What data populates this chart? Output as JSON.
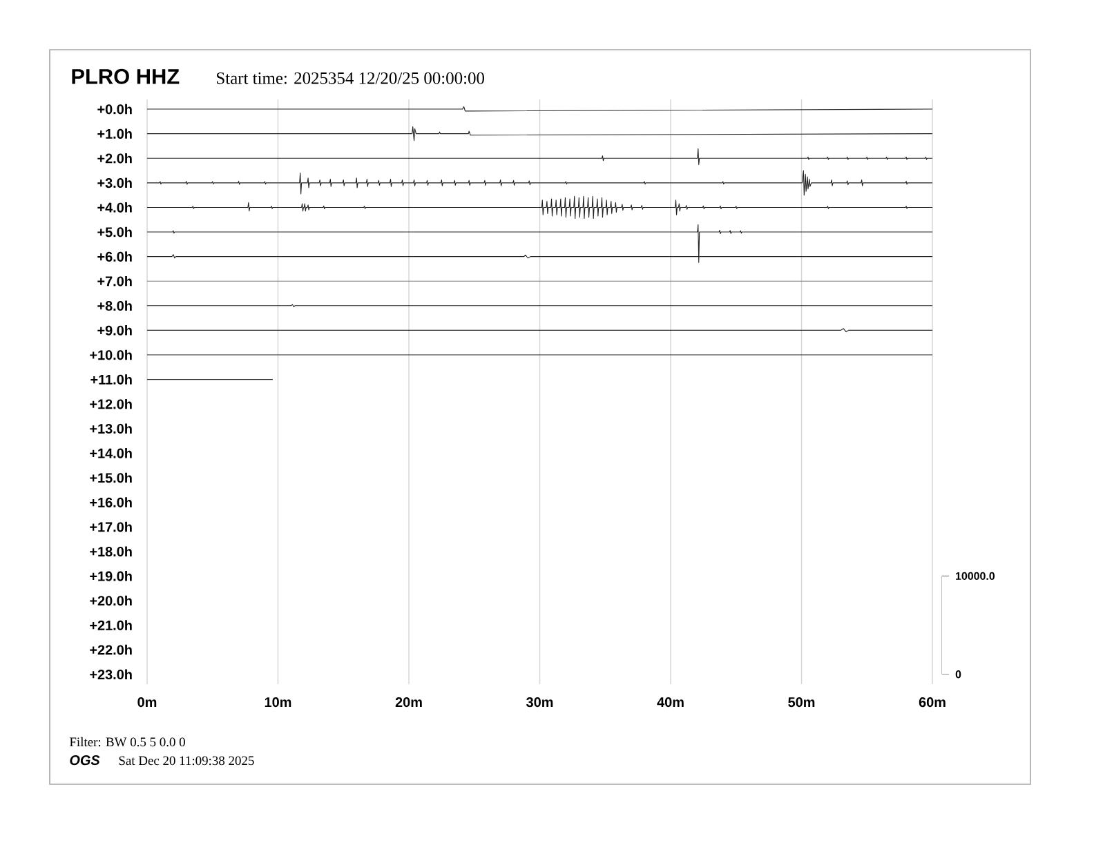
{
  "chart_data": {
    "type": "line",
    "title": "PLRO HHZ",
    "subtitle": "Start time: 2025354 12/20/25 00:00:00",
    "annotations": [
      "Filter: BW 0.5 5 0.0 0",
      "OGS",
      "Sat Dec 20 11:09:38 2025"
    ],
    "xlim": [
      0,
      60
    ],
    "xticks": [
      {
        "value": 0,
        "label": "0m"
      },
      {
        "value": 10,
        "label": "10m"
      },
      {
        "value": 20,
        "label": "20m"
      },
      {
        "value": 30,
        "label": "30m"
      },
      {
        "value": 40,
        "label": "40m"
      },
      {
        "value": 50,
        "label": "50m"
      },
      {
        "value": 60,
        "label": "60m"
      }
    ],
    "ylim": [
      23.4,
      -0.4
    ],
    "yticks": [
      {
        "value": 0,
        "label": "+0.0h"
      },
      {
        "value": 1,
        "label": "+1.0h"
      },
      {
        "value": 2,
        "label": "+2.0h"
      },
      {
        "value": 3,
        "label": "+3.0h"
      },
      {
        "value": 4,
        "label": "+4.0h"
      },
      {
        "value": 5,
        "label": "+5.0h"
      },
      {
        "value": 6,
        "label": "+6.0h"
      },
      {
        "value": 7,
        "label": "+7.0h"
      },
      {
        "value": 8,
        "label": "+8.0h"
      },
      {
        "value": 9,
        "label": "+9.0h"
      },
      {
        "value": 10,
        "label": "+10.0h"
      },
      {
        "value": 11,
        "label": "+11.0h"
      },
      {
        "value": 12,
        "label": "+12.0h"
      },
      {
        "value": 13,
        "label": "+13.0h"
      },
      {
        "value": 14,
        "label": "+14.0h"
      },
      {
        "value": 15,
        "label": "+15.0h"
      },
      {
        "value": 16,
        "label": "+16.0h"
      },
      {
        "value": 17,
        "label": "+17.0h"
      },
      {
        "value": 18,
        "label": "+18.0h"
      },
      {
        "value": 19,
        "label": "+19.0h"
      },
      {
        "value": 20,
        "label": "+20.0h"
      },
      {
        "value": 21,
        "label": "+21.0h"
      },
      {
        "value": 22,
        "label": "+22.0h"
      },
      {
        "value": 23,
        "label": "+23.0h"
      }
    ],
    "y2lim": [
      -1000,
      58500
    ],
    "y2ticks": [
      {
        "value": 0,
        "label": "0"
      },
      {
        "value": 10000,
        "label": "10000.0"
      }
    ],
    "grid": "x",
    "series": [
      {
        "color": "#222222",
        "x": [
          0,
          24.1,
          24.2,
          24.3,
          60
        ],
        "values": [
          0,
          0,
          -0.1,
          0.08,
          0
        ]
      },
      {
        "color": "#222222",
        "x": [
          0,
          20.25,
          20.3,
          20.4,
          20.45,
          20.55,
          22.3,
          22.35,
          22.4,
          24.55,
          24.6,
          24.7,
          60
        ],
        "values": [
          1,
          1,
          0.72,
          1.28,
          0.8,
          1,
          1,
          0.93,
          1,
          1,
          0.9,
          1.06,
          1
        ]
      },
      {
        "color": "#222222",
        "x": [
          0,
          34.75,
          34.8,
          34.85,
          34.9,
          42.05,
          42.1,
          42.15,
          42.2,
          50.45,
          50.5,
          50.55,
          50.6,
          51.95,
          52,
          52.05,
          52.1,
          53.45,
          53.5,
          53.55,
          53.6,
          54.95,
          55,
          55.05,
          55.1,
          56.45,
          56.5,
          56.55,
          56.6,
          57.95,
          58,
          58.05,
          58.1,
          59.45,
          59.5,
          59.55,
          59.6,
          60
        ],
        "values": [
          2,
          2,
          1.9,
          2.1,
          2,
          2,
          1.61,
          2.26,
          2,
          2,
          1.95,
          2.05,
          2,
          2,
          1.95,
          2.05,
          2,
          2,
          1.95,
          2.05,
          2,
          2,
          1.95,
          2.05,
          2,
          2,
          1.95,
          2.05,
          2,
          2,
          1.95,
          2.05,
          2,
          2,
          1.95,
          2.05,
          2,
          2
        ]
      },
      {
        "color": "#222222",
        "x": [
          0,
          0.95,
          1,
          1.05,
          1.1,
          2.95,
          3,
          3.05,
          3.1,
          4.95,
          5,
          5.05,
          5.1,
          6.95,
          7,
          7.05,
          7.1,
          8.95,
          9,
          9.05,
          9.1,
          11.65,
          11.7,
          11.75,
          11.8,
          12.25,
          12.3,
          12.35,
          12.4,
          13.15,
          13.2,
          13.25,
          13.3,
          13.95,
          14,
          14.05,
          14.1,
          14.95,
          15,
          15.05,
          15.1,
          15.95,
          16,
          16.05,
          16.1,
          16.75,
          16.8,
          16.85,
          16.9,
          17.65,
          17.7,
          17.75,
          17.8,
          18.55,
          18.6,
          18.65,
          18.7,
          19.45,
          19.5,
          19.55,
          19.6,
          20.35,
          20.4,
          20.45,
          20.5,
          21.35,
          21.4,
          21.45,
          21.5,
          22.45,
          22.5,
          22.55,
          22.6,
          23.45,
          23.5,
          23.55,
          23.6,
          24.55,
          24.6,
          24.65,
          24.7,
          25.75,
          25.8,
          25.85,
          25.9,
          26.95,
          27,
          27.05,
          27.1,
          27.95,
          28,
          28.05,
          28.1,
          29.15,
          29.2,
          29.25,
          29.3,
          31.95,
          32,
          32.05,
          32.1,
          37.95,
          38,
          38.05,
          38.1,
          43.95,
          44,
          44.05,
          44.1,
          50.05,
          50.15,
          50.2,
          50.3,
          50.35,
          50.45,
          50.5,
          50.6,
          50.65,
          50.75,
          52.25,
          52.3,
          52.35,
          52.4,
          53.45,
          53.5,
          53.55,
          53.6,
          54.55,
          54.6,
          54.65,
          54.7,
          57.95,
          58,
          58.05,
          58.1,
          60
        ],
        "values": [
          3,
          3,
          2.95,
          3.05,
          3,
          3,
          2.94,
          3.06,
          3,
          3,
          2.95,
          3.05,
          3,
          3,
          2.94,
          3.06,
          3,
          3,
          2.95,
          3.05,
          3,
          3,
          2.6,
          3.45,
          3,
          3,
          2.8,
          3.2,
          3,
          3,
          2.88,
          3.12,
          3,
          3,
          2.85,
          3.15,
          3,
          3,
          2.88,
          3.12,
          3,
          3,
          2.8,
          3.2,
          3,
          3,
          2.85,
          3.15,
          3,
          3,
          2.9,
          3.1,
          3,
          3,
          2.85,
          3.15,
          3,
          3,
          2.88,
          3.12,
          3,
          3,
          2.88,
          3.12,
          3,
          3,
          2.9,
          3.1,
          3,
          3,
          2.88,
          3.12,
          3,
          3,
          2.9,
          3.1,
          3,
          3,
          2.9,
          3.1,
          3,
          3,
          2.9,
          3.1,
          3,
          3,
          2.88,
          3.12,
          3,
          3,
          2.9,
          3.1,
          3,
          3,
          2.92,
          3.08,
          3,
          3,
          2.95,
          3.05,
          3,
          3,
          2.95,
          3.05,
          3,
          3,
          2.95,
          3.05,
          3,
          3,
          2.5,
          3.5,
          2.65,
          3.35,
          2.75,
          3.25,
          2.85,
          3.15,
          3,
          3,
          2.88,
          3.12,
          3,
          3,
          2.92,
          3.08,
          3,
          3,
          2.88,
          3.12,
          3,
          3,
          2.94,
          3.06,
          3,
          3
        ]
      },
      {
        "color": "#222222",
        "x": [
          0,
          3.45,
          3.5,
          3.55,
          3.6,
          7.7,
          7.75,
          7.8,
          7.85,
          9.45,
          9.5,
          9.55,
          9.6,
          11.8,
          11.85,
          11.9,
          11.95,
          12,
          12.05,
          12.1,
          12.15,
          12.25,
          12.3,
          12.35,
          12.4,
          13.45,
          13.5,
          13.55,
          13.6,
          16.55,
          16.6,
          16.65,
          16.7,
          30.15,
          30.2,
          30.25,
          30.3,
          30.5,
          30.55,
          30.6,
          30.65,
          30.85,
          30.9,
          30.95,
          31,
          31.2,
          31.25,
          31.3,
          31.35,
          31.55,
          31.6,
          31.65,
          31.7,
          31.9,
          31.95,
          32,
          32.05,
          32.25,
          32.3,
          32.35,
          32.4,
          32.6,
          32.65,
          32.7,
          32.75,
          32.95,
          33,
          33.05,
          33.1,
          33.3,
          33.35,
          33.4,
          33.45,
          33.65,
          33.7,
          33.75,
          33.8,
          34,
          34.05,
          34.1,
          34.15,
          34.35,
          34.4,
          34.45,
          34.5,
          34.7,
          34.75,
          34.8,
          34.85,
          35.05,
          35.1,
          35.15,
          35.2,
          35.4,
          35.45,
          35.5,
          35.55,
          35.75,
          35.8,
          35.85,
          35.9,
          36.25,
          36.3,
          36.35,
          36.4,
          36.95,
          37,
          37.05,
          37.1,
          37.75,
          37.8,
          37.85,
          37.9,
          40.35,
          40.4,
          40.45,
          40.5,
          40.6,
          40.65,
          40.7,
          40.75,
          41.15,
          41.2,
          41.25,
          41.3,
          42.45,
          42.5,
          42.55,
          42.6,
          43.75,
          43.8,
          43.85,
          43.9,
          44.95,
          45,
          45.05,
          45.1,
          51.95,
          52,
          52.05,
          52.1,
          57.95,
          58,
          58.05,
          58.1,
          60
        ],
        "values": [
          4,
          4,
          3.95,
          4.05,
          4,
          4,
          3.8,
          4.15,
          4,
          4,
          3.95,
          4.05,
          4,
          4,
          3.85,
          4.15,
          4,
          4,
          3.85,
          4.15,
          4,
          4,
          3.9,
          4.1,
          4,
          4,
          3.94,
          4.06,
          4,
          4,
          3.95,
          4.05,
          4,
          4,
          3.7,
          4.3,
          4,
          4,
          3.75,
          4.25,
          4,
          4,
          3.65,
          4.35,
          4,
          4,
          3.7,
          4.3,
          4,
          4,
          3.65,
          4.35,
          4,
          4,
          3.6,
          4.4,
          4,
          4,
          3.65,
          4.35,
          4,
          4,
          3.55,
          4.45,
          4,
          4,
          3.6,
          4.4,
          4,
          4,
          3.55,
          4.45,
          4,
          4,
          3.6,
          4.4,
          4,
          4,
          3.55,
          4.45,
          4,
          4,
          3.65,
          4.35,
          4,
          4,
          3.6,
          4.4,
          4,
          4,
          3.7,
          4.3,
          4,
          4,
          3.75,
          4.25,
          4,
          4,
          3.8,
          4.2,
          4,
          4,
          3.88,
          4.12,
          4,
          4,
          3.9,
          4.1,
          4,
          4,
          3.92,
          4.08,
          4,
          4,
          3.7,
          4.3,
          4,
          4,
          3.85,
          4.15,
          4,
          4,
          3.92,
          4.08,
          4,
          4,
          3.94,
          4.06,
          4,
          4,
          3.94,
          4.06,
          4,
          4,
          3.95,
          4.05,
          4,
          4,
          3.95,
          4.05,
          4,
          4,
          3.95,
          4.05,
          4,
          4
        ]
      },
      {
        "color": "#222222",
        "x": [
          0,
          1.95,
          2,
          2.05,
          2.1,
          42.05,
          42.1,
          42.15,
          42.2,
          43.7,
          43.75,
          43.8,
          43.85,
          44.5,
          44.55,
          44.6,
          44.65,
          45.3,
          45.35,
          45.4,
          45.45,
          60
        ],
        "values": [
          5,
          5,
          4.95,
          5.05,
          5,
          5,
          4.7,
          6.24,
          5,
          5,
          4.93,
          5.07,
          5,
          5,
          4.94,
          5.06,
          5,
          5,
          4.95,
          5.05,
          5,
          5
        ]
      },
      {
        "color": "#222222",
        "x": [
          0,
          1.9,
          2,
          2.1,
          2.2,
          28.8,
          28.9,
          29.1,
          29.3,
          60
        ],
        "values": [
          6,
          6,
          5.92,
          6.06,
          6,
          6,
          5.94,
          6.06,
          6,
          6
        ]
      },
      {
        "color": "#777777",
        "x": [
          0,
          60
        ],
        "values": [
          7,
          7
        ]
      },
      {
        "color": "#222222",
        "x": [
          0,
          11,
          11.1,
          11.2,
          11.3,
          60
        ],
        "values": [
          8,
          8,
          7.95,
          8.04,
          8,
          8
        ]
      },
      {
        "color": "#222222",
        "x": [
          0,
          53,
          53.2,
          53.4,
          53.6,
          60
        ],
        "values": [
          9,
          9,
          8.93,
          9.06,
          9,
          9
        ]
      },
      {
        "color": "#222222",
        "x": [
          0,
          60
        ],
        "values": [
          10,
          10
        ]
      },
      {
        "color": "#222222",
        "x": [
          0,
          9.6
        ],
        "values": [
          11,
          11
        ]
      }
    ]
  }
}
